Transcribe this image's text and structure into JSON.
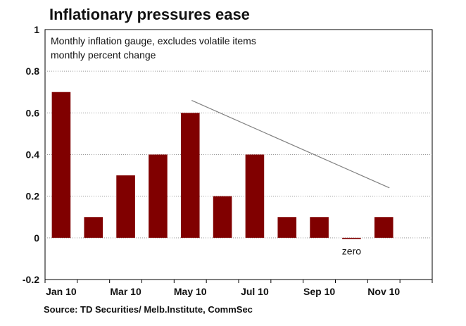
{
  "chart_data": {
    "type": "bar",
    "title": "Inflationary pressures ease",
    "subtitle_lines": [
      "Monthly inflation gauge, excludes volatile items",
      "monthly percent change"
    ],
    "source": "Source: TD Securities/ Melb.Institute,  CommSec",
    "categories": [
      "Jan 10",
      "Feb 10",
      "Mar 10",
      "Apr 10",
      "May 10",
      "Jun 10",
      "Jul 10",
      "Aug 10",
      "Sep 10",
      "Oct 10",
      "Nov 10",
      "Dec 10"
    ],
    "x_tick_labels": [
      "Jan 10",
      "Mar 10",
      "May 10",
      "Jul 10",
      "Sep 10",
      "Nov 10"
    ],
    "values": [
      0.7,
      0.1,
      0.3,
      0.4,
      0.6,
      0.2,
      0.4,
      0.1,
      0.1,
      0.0,
      0.1,
      null
    ],
    "ylim": [
      -0.2,
      1
    ],
    "y_ticks": [
      "1",
      "0.8",
      "0.6",
      "0.4",
      "0.2",
      "0",
      "-0.2"
    ],
    "y_tick_values": [
      1,
      0.8,
      0.6,
      0.4,
      0.2,
      0,
      -0.2
    ],
    "trend_line": {
      "from": {
        "category": "May 10",
        "value": 0.66
      },
      "to": {
        "category": "Nov 10",
        "value": 0.24
      }
    },
    "annotations": [
      {
        "text": "zero",
        "category": "Oct 10",
        "value": -0.04
      }
    ],
    "grid": true,
    "bar_color": "#800000",
    "trend_color": "#808080"
  }
}
